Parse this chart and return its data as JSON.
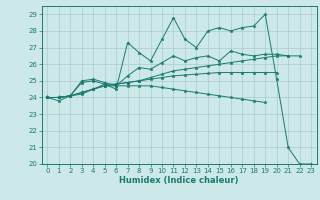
{
  "xlabel": "Humidex (Indice chaleur)",
  "bg_color": "#cce8e8",
  "grid_color": "#aacccc",
  "line_color": "#1a7a6e",
  "xlim": [
    -0.5,
    23.5
  ],
  "ylim": [
    20,
    29.5
  ],
  "xticks": [
    0,
    1,
    2,
    3,
    4,
    5,
    6,
    7,
    8,
    9,
    10,
    11,
    12,
    13,
    14,
    15,
    16,
    17,
    18,
    19,
    20,
    21,
    22,
    23
  ],
  "yticks": [
    20,
    21,
    22,
    23,
    24,
    25,
    26,
    27,
    28,
    29
  ],
  "series": [
    [
      24.0,
      23.8,
      24.1,
      24.9,
      25.0,
      24.8,
      24.5,
      27.3,
      26.7,
      26.2,
      27.5,
      28.8,
      27.5,
      27.0,
      28.0,
      28.2,
      28.0,
      28.2,
      28.3,
      29.0,
      25.1,
      21.0,
      20.0,
      20.0
    ],
    [
      24.0,
      24.0,
      24.1,
      24.2,
      24.5,
      24.8,
      24.8,
      24.9,
      25.0,
      25.2,
      25.4,
      25.6,
      25.7,
      25.8,
      25.9,
      26.0,
      26.1,
      26.2,
      26.3,
      26.4,
      26.5,
      26.5,
      26.5,
      null
    ],
    [
      24.0,
      24.0,
      24.1,
      24.3,
      24.5,
      24.7,
      24.8,
      24.9,
      25.0,
      25.1,
      25.2,
      25.3,
      25.35,
      25.4,
      25.45,
      25.5,
      25.5,
      25.5,
      25.5,
      25.5,
      25.5,
      null,
      null,
      null
    ],
    [
      24.0,
      24.0,
      24.1,
      24.3,
      24.5,
      24.7,
      24.7,
      24.7,
      24.7,
      24.7,
      24.6,
      24.5,
      24.4,
      24.3,
      24.2,
      24.1,
      24.0,
      23.9,
      23.8,
      23.7,
      null,
      null,
      null,
      null
    ],
    [
      24.0,
      24.0,
      24.1,
      25.0,
      25.1,
      24.9,
      24.7,
      25.3,
      25.8,
      25.7,
      26.1,
      26.5,
      26.2,
      26.4,
      26.5,
      26.2,
      26.8,
      26.6,
      26.5,
      26.6,
      26.6,
      26.5,
      null,
      null
    ]
  ]
}
